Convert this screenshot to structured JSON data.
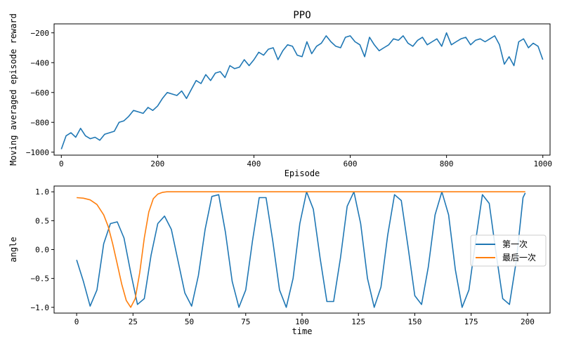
{
  "chart_data": [
    {
      "type": "line",
      "title": "PPO",
      "xlabel": "Episode",
      "ylabel": "Moving averaged episode reward",
      "xlim": [
        -15,
        1015
      ],
      "ylim": [
        -1020,
        -140
      ],
      "xticks": [
        0,
        200,
        400,
        600,
        800,
        1000
      ],
      "yticks": [
        -1000,
        -800,
        -600,
        -400,
        -200
      ],
      "xtick_labels": [
        "0",
        "200",
        "400",
        "600",
        "800",
        "1000"
      ],
      "ytick_labels": [
        "-1000",
        "-800",
        "-600",
        "-400",
        "-200"
      ],
      "series": [
        {
          "name": "PPO",
          "color": "#1f77b4",
          "x": [
            0,
            10,
            20,
            30,
            40,
            50,
            60,
            70,
            80,
            90,
            100,
            110,
            120,
            130,
            140,
            150,
            160,
            170,
            180,
            190,
            200,
            210,
            220,
            230,
            240,
            250,
            260,
            270,
            280,
            290,
            300,
            310,
            320,
            330,
            340,
            350,
            360,
            370,
            380,
            390,
            400,
            410,
            420,
            430,
            440,
            450,
            460,
            470,
            480,
            490,
            500,
            510,
            520,
            530,
            540,
            550,
            560,
            570,
            580,
            590,
            600,
            610,
            620,
            630,
            640,
            650,
            660,
            670,
            680,
            690,
            700,
            710,
            720,
            730,
            740,
            750,
            760,
            770,
            780,
            790,
            800,
            810,
            820,
            830,
            840,
            850,
            860,
            870,
            880,
            890,
            900,
            910,
            920,
            930,
            940,
            950,
            960,
            970,
            980,
            990,
            1000
          ],
          "values": [
            -980,
            -890,
            -870,
            -900,
            -840,
            -890,
            -910,
            -900,
            -920,
            -880,
            -870,
            -860,
            -800,
            -790,
            -760,
            -720,
            -730,
            -740,
            -700,
            -720,
            -690,
            -640,
            -600,
            -610,
            -620,
            -590,
            -640,
            -580,
            -520,
            -540,
            -480,
            -520,
            -470,
            -460,
            -500,
            -420,
            -440,
            -430,
            -380,
            -420,
            -380,
            -330,
            -350,
            -310,
            -300,
            -380,
            -320,
            -280,
            -290,
            -350,
            -360,
            -260,
            -340,
            -290,
            -270,
            -220,
            -260,
            -290,
            -300,
            -230,
            -220,
            -260,
            -280,
            -360,
            -230,
            -280,
            -320,
            -300,
            -280,
            -240,
            -250,
            -220,
            -270,
            -290,
            -250,
            -230,
            -280,
            -260,
            -240,
            -290,
            -200,
            -280,
            -260,
            -240,
            -230,
            -280,
            -250,
            -240,
            -260,
            -240,
            -220,
            -280,
            -410,
            -360,
            -420,
            -260,
            -240,
            -300,
            -270,
            -290,
            -380
          ]
        }
      ]
    },
    {
      "type": "line",
      "title": "",
      "xlabel": "time",
      "ylabel": "angle",
      "xlim": [
        -10,
        210
      ],
      "ylim": [
        -1.1,
        1.1
      ],
      "xticks": [
        0,
        25,
        50,
        75,
        100,
        125,
        150,
        175,
        200
      ],
      "yticks": [
        -1.0,
        -0.5,
        0.0,
        0.5,
        1.0
      ],
      "xtick_labels": [
        "0",
        "25",
        "50",
        "75",
        "100",
        "125",
        "150",
        "175",
        "200"
      ],
      "ytick_labels": [
        "-1.0",
        "-0.5",
        "0.0",
        "0.5",
        "1.0"
      ],
      "legend_location": "center-right",
      "series": [
        {
          "name": "第一次",
          "color": "#1f77b4",
          "x": [
            0,
            3,
            6,
            9,
            12,
            15,
            18,
            21,
            24,
            27,
            30,
            33,
            36,
            39,
            42,
            45,
            48,
            51,
            54,
            57,
            60,
            63,
            66,
            69,
            72,
            75,
            78,
            81,
            84,
            87,
            90,
            93,
            96,
            99,
            102,
            105,
            108,
            111,
            114,
            117,
            120,
            123,
            126,
            129,
            132,
            135,
            138,
            141,
            144,
            147,
            150,
            153,
            156,
            159,
            162,
            165,
            168,
            171,
            174,
            177,
            180,
            183,
            186,
            189,
            192,
            195,
            198,
            199
          ],
          "values": [
            -0.18,
            -0.55,
            -0.98,
            -0.7,
            0.1,
            0.45,
            0.48,
            0.2,
            -0.4,
            -0.95,
            -0.85,
            -0.1,
            0.45,
            0.58,
            0.35,
            -0.2,
            -0.75,
            -0.98,
            -0.45,
            0.35,
            0.92,
            0.95,
            0.3,
            -0.55,
            -1.0,
            -0.7,
            0.15,
            0.9,
            0.9,
            0.15,
            -0.7,
            -1.0,
            -0.5,
            0.45,
            1.0,
            0.7,
            -0.15,
            -0.9,
            -0.9,
            -0.15,
            0.75,
            1.0,
            0.45,
            -0.5,
            -1.0,
            -0.65,
            0.25,
            0.95,
            0.85,
            0.05,
            -0.8,
            -0.95,
            -0.3,
            0.6,
            1.0,
            0.6,
            -0.35,
            -1.0,
            -0.7,
            0.15,
            0.95,
            0.8,
            -0.05,
            -0.85,
            -0.95,
            -0.2,
            0.9,
            0.98
          ]
        },
        {
          "name": "最后一次",
          "color": "#ff7f0e",
          "x": [
            0,
            3,
            6,
            9,
            12,
            14,
            16,
            18,
            20,
            22,
            24,
            26,
            28,
            30,
            32,
            34,
            36,
            38,
            40,
            45,
            50,
            60,
            80,
            100,
            120,
            140,
            160,
            180,
            199
          ],
          "values": [
            0.9,
            0.89,
            0.86,
            0.78,
            0.6,
            0.4,
            0.1,
            -0.25,
            -0.6,
            -0.88,
            -1.0,
            -0.85,
            -0.4,
            0.2,
            0.65,
            0.88,
            0.96,
            0.99,
            1.0,
            1.0,
            1.0,
            1.0,
            1.0,
            1.0,
            1.0,
            1.0,
            1.0,
            1.0,
            1.0
          ]
        }
      ]
    }
  ]
}
